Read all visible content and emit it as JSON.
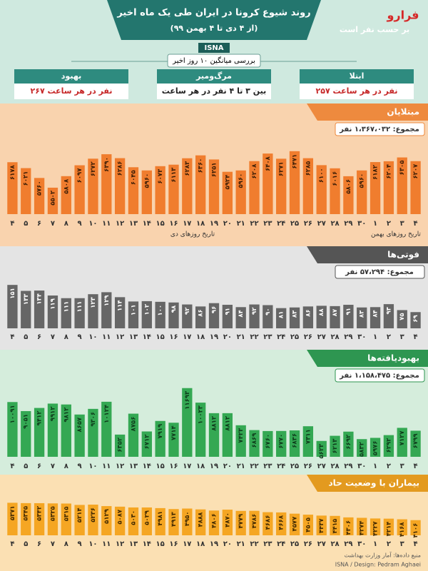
{
  "header": {
    "title": "روند شیوع کرونا در ایران طی یک ماه اخیر",
    "subtitle": "(از ۴ دی تا ۴ بهمن ۹۹)",
    "agency": "ISNA",
    "unit_note": "بر حسب نفر است",
    "logo": "فرارو",
    "summary_caption": "بررسی میانگین ۱۰ روز اخیر",
    "boxes": [
      {
        "label": "ابتلا",
        "value": "۲۵۷ نفر در هر ساعت"
      },
      {
        "label": "مرگ‌ومیر",
        "value": "بین ۳ تا ۴ نفر در هر ساعت"
      },
      {
        "label": "بهبود",
        "value": "۲۶۷ نفر در هر ساعت"
      }
    ]
  },
  "chart_data": [
    {
      "type": "bar",
      "title": "مبتلایان",
      "total": "مجموع: ۱،۳۶۷،۰۳۲ نفر",
      "color": "#f07d2e",
      "ylim": [
        4800,
        6600
      ],
      "x_captions": [
        "تاریخ روزهای دی",
        "تاریخ روزهای بهمن"
      ],
      "categories": [
        "۴",
        "۵",
        "۶",
        "۷",
        "۸",
        "۹",
        "۱۰",
        "۱۱",
        "۱۲",
        "۱۳",
        "۱۴",
        "۱۵",
        "۱۶",
        "۱۷",
        "۱۸",
        "۱۹",
        "۲۰",
        "۲۱",
        "۲۲",
        "۲۳",
        "۲۴",
        "۲۵",
        "۲۶",
        "۲۷",
        "۲۸",
        "۲۹",
        "۳۰",
        "۱",
        "۲",
        "۳",
        "۴"
      ],
      "values": [
        6178,
        6021,
        5760,
        5502,
        5808,
        6097,
        6272,
        6390,
        6286,
        6045,
        5960,
        6073,
        6113,
        6283,
        6360,
        6251,
        5924,
        5960,
        6208,
        6408,
        6271,
        6471,
        6285,
        6100,
        6016,
        5806,
        5960,
        6182,
        6204,
        6305,
        6207
      ],
      "value_labels": [
        "۶۱۷۸",
        "۶۰۲۱",
        "۵۷۶۰",
        "۵۵۰۲",
        "۵۸۰۸",
        "۶۰۹۷",
        "۶۲۷۲",
        "۶۳۹۰",
        "۶۲۸۶",
        "۶۰۴۵",
        "۵۹۶۰",
        "۶۰۷۳",
        "۶۱۱۳",
        "۶۲۸۳",
        "۶۳۶۰",
        "۶۲۵۱",
        "۵۹۲۴",
        "۵۹۶۰",
        "۶۲۰۸",
        "۶۴۰۸",
        "۶۲۷۱",
        "۶۴۷۱",
        "۶۲۸۵",
        "۶۱۰۰",
        "۶۰۱۶",
        "۵۸۰۶",
        "۵۹۶۰",
        "۶۱۸۲",
        "۶۲۰۴",
        "۶۳۰۵",
        "۶۲۰۷"
      ]
    },
    {
      "type": "bar",
      "title": "فوتی‌ها",
      "total": "مجموع: ۵۷،۲۹۴ نفر",
      "color": "#666666",
      "ylim": [
        20,
        160
      ],
      "categories": [
        "۴",
        "۵",
        "۶",
        "۷",
        "۸",
        "۹",
        "۱۰",
        "۱۱",
        "۱۲",
        "۱۳",
        "۱۴",
        "۱۵",
        "۱۶",
        "۱۷",
        "۱۸",
        "۱۹",
        "۲۰",
        "۲۱",
        "۲۲",
        "۲۳",
        "۲۴",
        "۲۵",
        "۲۶",
        "۲۷",
        "۲۸",
        "۲۹",
        "۳۰",
        "۱",
        "۲",
        "۳",
        "۴"
      ],
      "values": [
        151,
        133,
        134,
        119,
        111,
        111,
        123,
        129,
        114,
        101,
        102,
        100,
        98,
        92,
        86,
        96,
        91,
        84,
        92,
        90,
        81,
        83,
        86,
        88,
        87,
        91,
        83,
        84,
        93,
        75,
        69
      ],
      "value_labels": [
        "۱۵۱",
        "۱۳۳",
        "۱۳۴",
        "۱۱۹",
        "۱۱۱",
        "۱۱۱",
        "۱۲۳",
        "۱۲۹",
        "۱۱۴",
        "۱۰۱",
        "۱۰۲",
        "۱۰۰",
        "۹۸",
        "۹۲",
        "۸۶",
        "۹۶",
        "۹۱",
        "۸۴",
        "۹۲",
        "۹۰",
        "۸۱",
        "۸۳",
        "۸۶",
        "۸۸",
        "۸۷",
        "۹۱",
        "۸۳",
        "۸۴",
        "۹۳",
        "۷۵",
        "۶۹"
      ]
    },
    {
      "type": "bar",
      "title": "بهبودیافته‌ها",
      "total": "مجموع: ۱،۱۵۸،۴۷۵ نفر",
      "color": "#34a853",
      "ylim": [
        3800,
        12000
      ],
      "categories": [
        "۴",
        "۵",
        "۶",
        "۷",
        "۸",
        "۹",
        "۱۰",
        "۱۱",
        "۱۲",
        "۱۳",
        "۱۴",
        "۱۵",
        "۱۶",
        "۱۷",
        "۱۸",
        "۱۹",
        "۲۰",
        "۲۱",
        "۲۲",
        "۲۳",
        "۲۴",
        "۲۵",
        "۲۶",
        "۲۷",
        "۲۸",
        "۲۹",
        "۳۰",
        "۱",
        "۲",
        "۳",
        "۴"
      ],
      "values": [
        10091,
        9051,
        9412,
        9912,
        9812,
        8657,
        9306,
        10124,
        6352,
        8756,
        6712,
        7919,
        7714,
        11693,
        10023,
        8812,
        8812,
        7423,
        6869,
        6760,
        6770,
        6836,
        7311,
        5623,
        6213,
        6692,
        5832,
        5976,
        6292,
        7127,
        6799
      ],
      "value_labels": [
        "۱۰۰۹۱",
        "۹۰۵۱",
        "۹۴۱۲",
        "۹۹۱۲",
        "۹۸۱۲",
        "۸۶۵۷",
        "۹۳۰۶",
        "۱۰۱۲۴",
        "۶۳۵۲",
        "۸۷۵۶",
        "۶۷۱۲",
        "۷۹۱۹",
        "۷۷۱۴",
        "۱۱۶۹۳",
        "۱۰۰۲۳",
        "۸۸۱۲",
        "۸۸۱۲",
        "۷۴۲۳",
        "۶۸۶۹",
        "۶۷۶۰",
        "۶۷۷۰",
        "۶۸۳۶",
        "۷۳۱۱",
        "۵۶۲۳",
        "۶۲۱۳",
        "۶۶۹۲",
        "۵۸۳۲",
        "۵۹۷۶",
        "۶۲۹۲",
        "۷۱۲۷",
        "۶۷۹۹"
      ]
    },
    {
      "type": "bar",
      "title": "بیماران با وضعیت حاد",
      "color": "#f5a623",
      "ylim": [
        3000,
        5600
      ],
      "categories": [
        "۴",
        "۵",
        "۶",
        "۷",
        "۸",
        "۹",
        "۱۰",
        "۱۱",
        "۱۲",
        "۱۳",
        "۱۴",
        "۱۵",
        "۱۶",
        "۱۷",
        "۱۸",
        "۱۹",
        "۲۰",
        "۲۱",
        "۲۲",
        "۲۳",
        "۲۴",
        "۲۵",
        "۲۶",
        "۲۷",
        "۲۸",
        "۲۹",
        "۳۰",
        "۱",
        "۲",
        "۳",
        "۴"
      ],
      "values": [
        5371,
        5345,
        5342,
        5325,
        5315,
        5214,
        5236,
        5129,
        5087,
        5030,
        5029,
        4981,
        4913,
        4950,
        4888,
        4806,
        4870,
        4779,
        4786,
        4686,
        4668,
        4577,
        4505,
        4437,
        4415,
        4306,
        4274,
        4227,
        4214,
        4168,
        4106
      ],
      "value_labels": [
        "۵۳۷۱",
        "۵۳۴۵",
        "۵۳۴۲",
        "۵۳۲۵",
        "۵۳۱۵",
        "۵۲۱۴",
        "۵۲۳۶",
        "۵۱۲۹",
        "۵۰۸۷",
        "۵۰۳۰",
        "۵۰۲۹",
        "۴۹۸۱",
        "۴۹۱۳",
        "۴۹۵۰",
        "۴۸۸۸",
        "۴۸۰۶",
        "۴۸۷۰",
        "۴۷۷۹",
        "۴۷۸۶",
        "۴۶۸۶",
        "۴۶۶۸",
        "۴۵۷۷",
        "۴۵۰۵",
        "۴۴۳۷",
        "۴۴۱۵",
        "۴۳۰۶",
        "۴۲۷۴",
        "۴۲۲۷",
        "۴۲۱۴",
        "۴۱۶۸",
        "۴۱۰۶"
      ]
    }
  ],
  "footer": {
    "source": "منبع داده‌ها: آمار وزارت بهداشت",
    "credit": "ISNA / Design: Pedram Aghaei"
  }
}
